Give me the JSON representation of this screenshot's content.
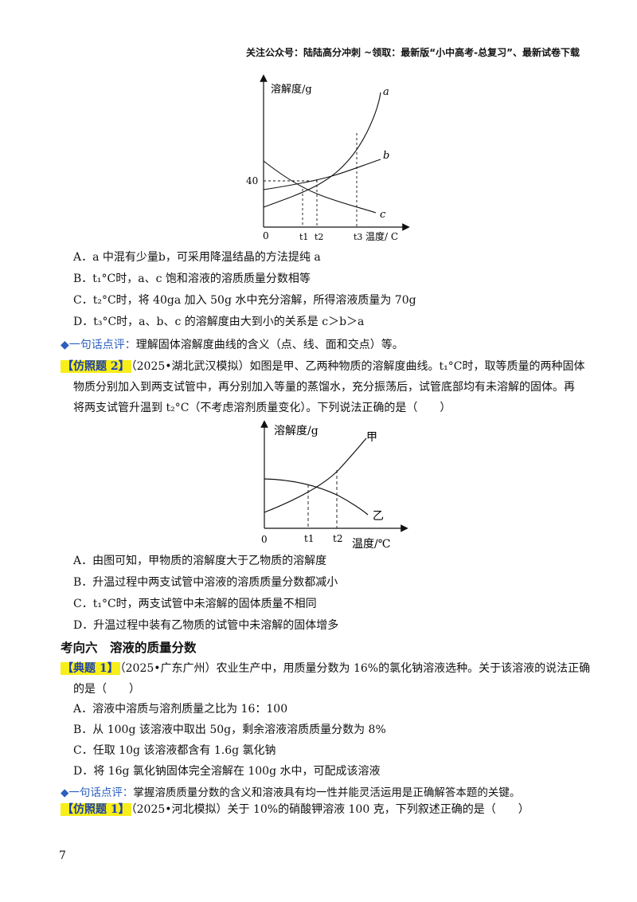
{
  "header": "关注公众号：陆陆高分冲刺 ~领取：最新版“小中高考-总复习”、最新试卷下载",
  "chart1": {
    "ylabel": "溶解度/g",
    "xlabel": "温度/ C",
    "origin": "0",
    "y_tick": "40",
    "series": [
      "a",
      "b",
      "c"
    ],
    "x_ticks": [
      "t1",
      "t2",
      "t3"
    ]
  },
  "q1_options": [
    "A．a 中混有少量b，可采用降温结晶的方法提纯 a",
    "B．t₁°C时，a、c 饱和溶液的溶质质量分数相等",
    "C．t₂°C时，将 40ga 加入 50g 水中充分溶解，所得溶液质量为 70g",
    "D．t₃°C时，a、b、c 的溶解度由大到小的关系是 c＞b＞a"
  ],
  "tip1": {
    "diamond": "◆",
    "label": "一句话点评：",
    "text": "理解固体溶解度曲线的含义（点、线、面和交点）等。"
  },
  "q2": {
    "tag": "【仿照题 2】",
    "line1": "（2025•湖北武汉模拟）如图是甲、乙两种物质的溶解度曲线。t₁°C时，取等质量的两种固体",
    "line2": "物质分别加入到两支试管中，再分别加入等量的蒸馏水，充分振荡后，试管底部均有未溶解的固体。再",
    "line3": "将两支试管升温到 t₂°C（不考虑溶剂质量变化）。下列说法正确的是（　　）"
  },
  "chart2": {
    "ylabel": "溶解度/g",
    "xlabel": "温度/℃",
    "origin": "0",
    "series": [
      "甲",
      "乙"
    ],
    "x_ticks": [
      "t1",
      "t2"
    ]
  },
  "q2_options": [
    "A．由图可知，甲物质的溶解度大于乙物质的溶解度",
    "B．升温过程中两支试管中溶液的溶质质量分数都减小",
    "C．t₁°C时，两支试管中未溶解的固体质量不相同",
    "D．升温过程中装有乙物质的试管中未溶解的固体增多"
  ],
  "section_title": "考向六　溶液的质量分数",
  "q3": {
    "tag": "【典题 1】",
    "line1": "（2025•广东广州）农业生产中，用质量分数为 16%的氯化钠溶液选种。关于该溶液的说法正确",
    "line2": "的是（　　）"
  },
  "q3_options": [
    "A．溶液中溶质与溶剂质量之比为 16：100",
    "B．从 100g 该溶液中取出 50g，剩余溶液溶质质量分数为 8%",
    "C．任取 10g 该溶液都含有 1.6g 氯化钠",
    "D．将 16g 氯化钠固体完全溶解在 100g 水中，可配成该溶液"
  ],
  "tip2": {
    "diamond": "◆",
    "label": "一句话点评：",
    "text": "掌握溶质质量分数的含义和溶液具有均一性并能灵活运用是正确解答本题的关键。"
  },
  "q4": {
    "tag": "【仿照题 1】",
    "line1": "（2025•河北模拟）关于 10%的硝酸钾溶液 100 克，下列叙述正确的是（　　）"
  },
  "page_number": "7"
}
